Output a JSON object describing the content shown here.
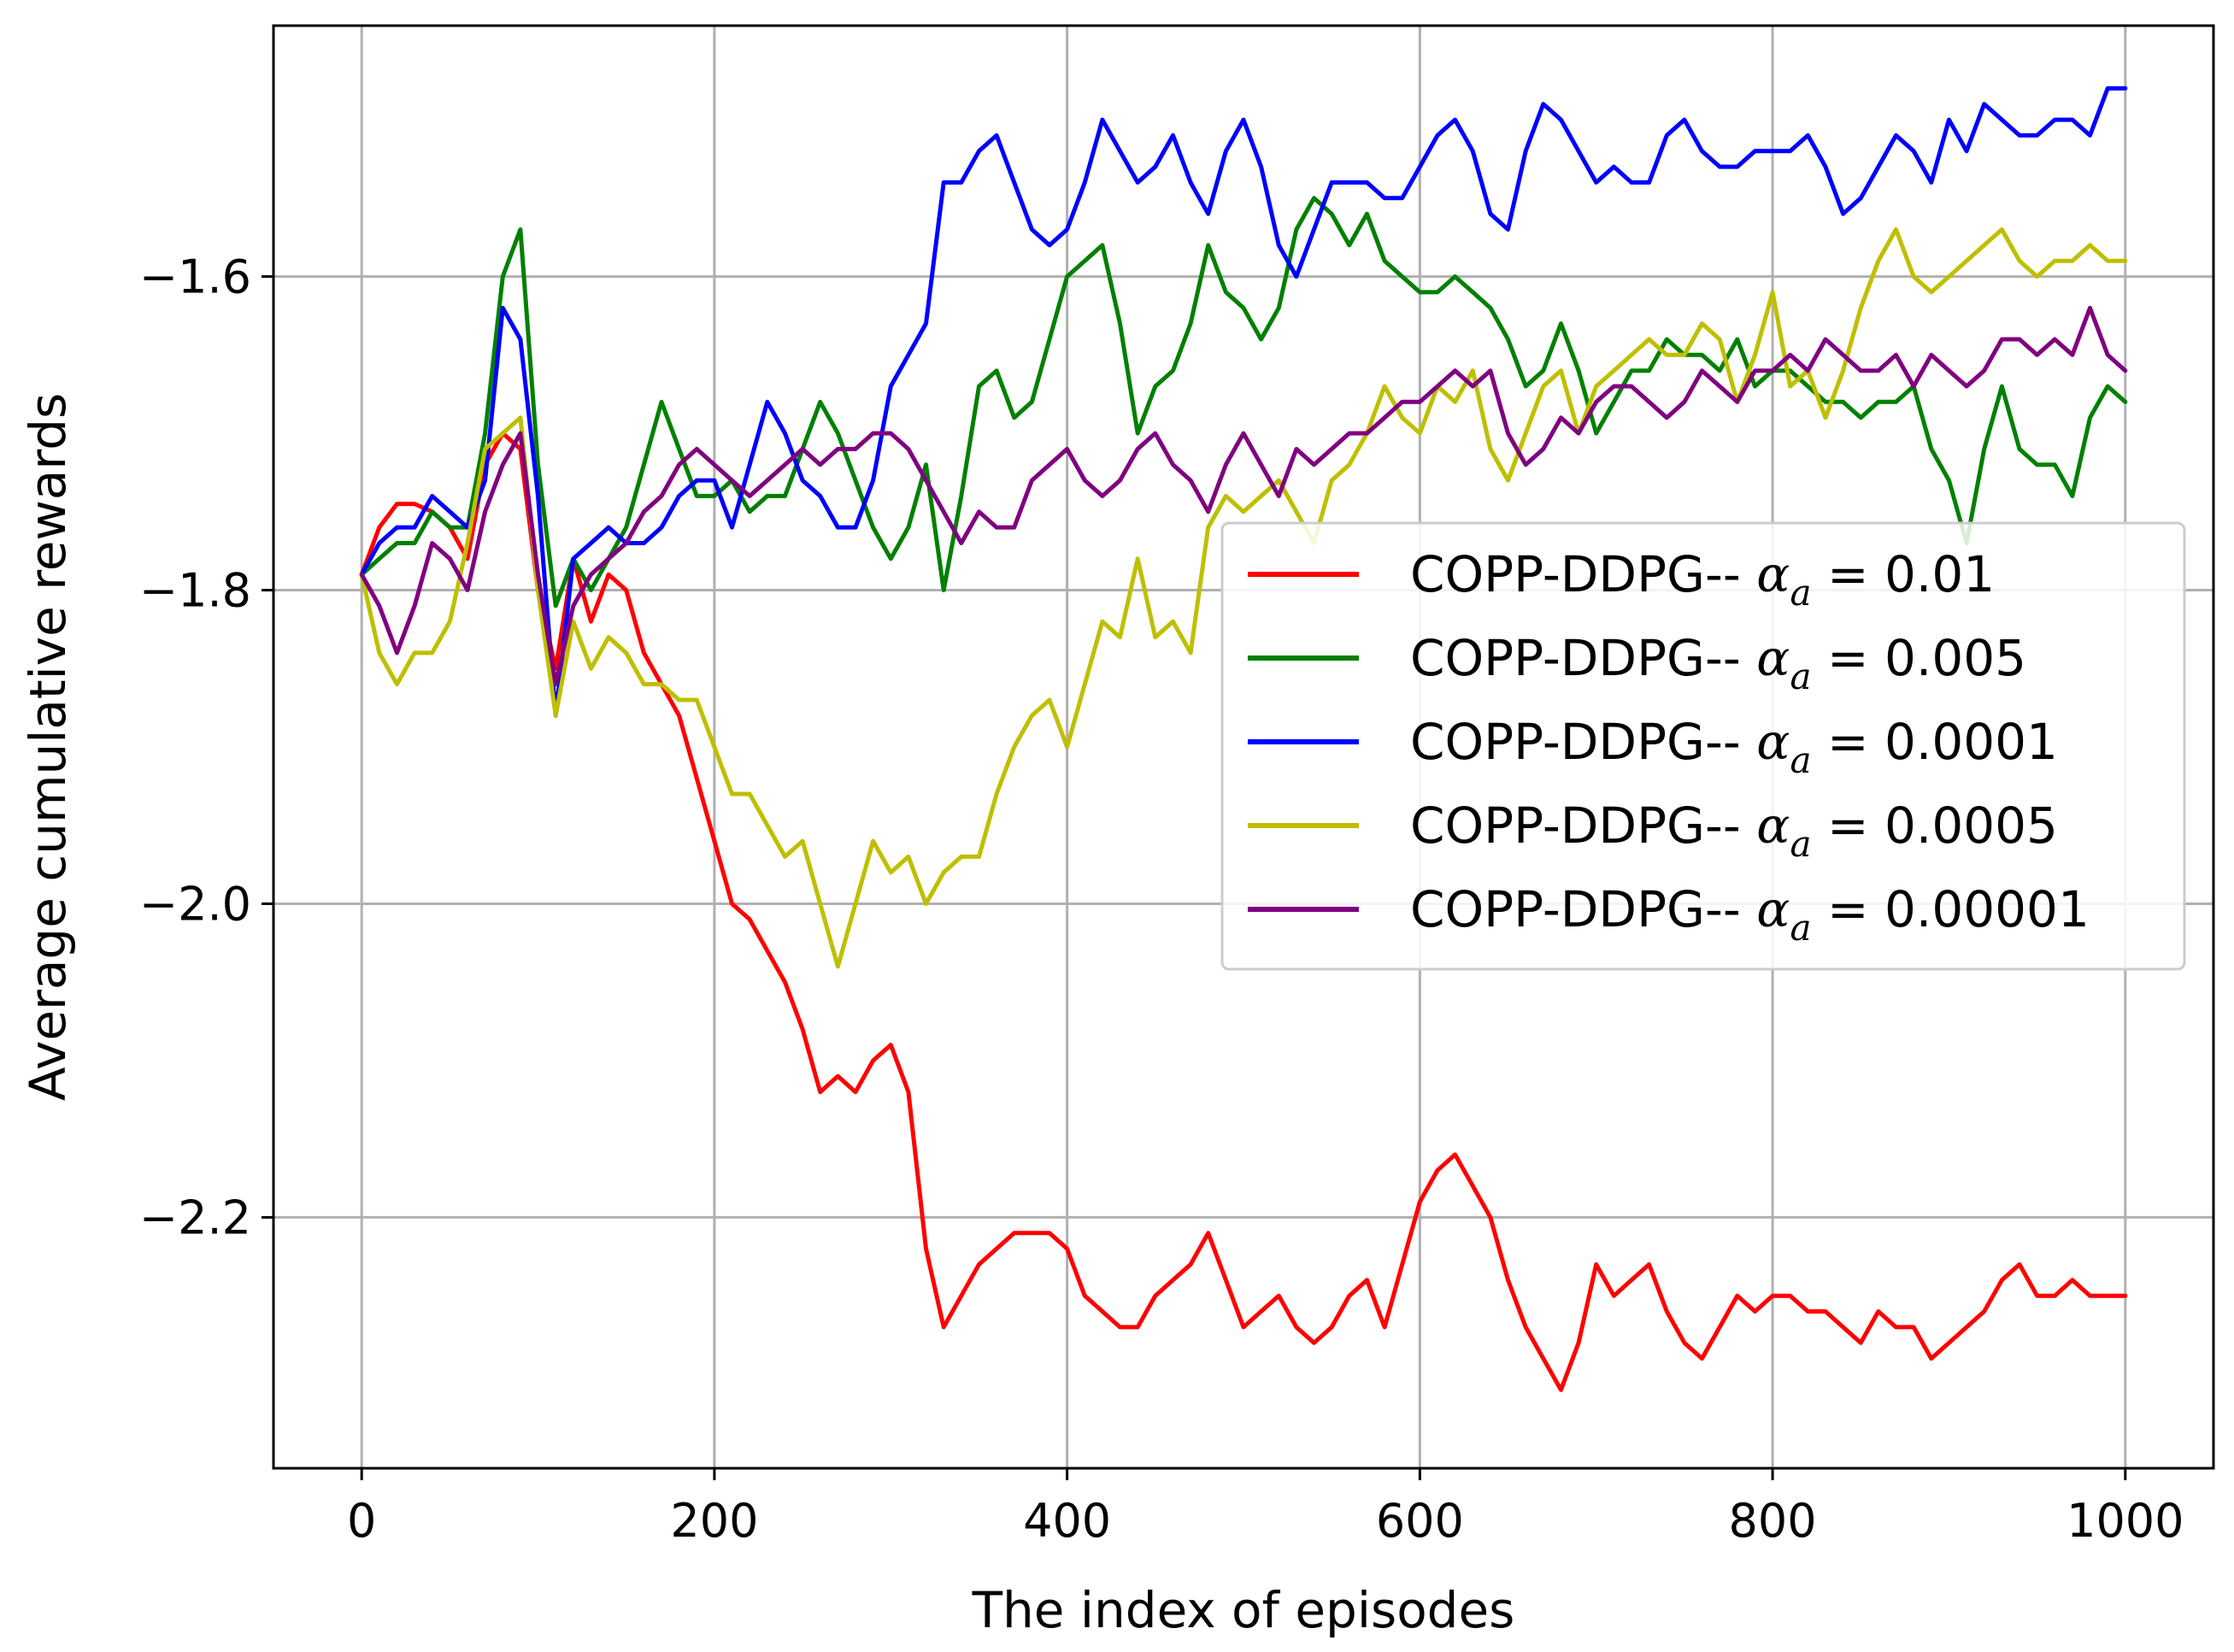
{
  "chart_data": {
    "type": "line",
    "title": "",
    "xlabel": "The index of episodes",
    "ylabel": "Average cumulative rewards",
    "xlim": [
      -50,
      1050
    ],
    "ylim": [
      -2.36,
      -1.44
    ],
    "xticks": [
      0,
      200,
      400,
      600,
      800,
      1000
    ],
    "xtick_labels": [
      "0",
      "200",
      "400",
      "600",
      "800",
      "1000"
    ],
    "yticks": [
      -2.2,
      -2.0,
      -1.8,
      -1.6
    ],
    "ytick_labels": [
      "−2.2",
      "−2.0",
      "−1.8",
      "−1.6"
    ],
    "grid": true,
    "legend_position": "center-right",
    "legend_prefix": "COPP-DDPG-- ",
    "legend_symbol": "α",
    "legend_subscript": "a",
    "legend_eq": " = ",
    "series": [
      {
        "name": "COPP-DDPG-- αa = 0.01",
        "alpha": "0.01",
        "color": "#ff0000",
        "x": [
          0,
          10,
          20,
          30,
          40,
          50,
          60,
          70,
          80,
          90,
          100,
          110,
          120,
          130,
          140,
          150,
          160,
          170,
          180,
          190,
          200,
          210,
          220,
          230,
          240,
          250,
          260,
          270,
          280,
          290,
          300,
          310,
          320,
          330,
          340,
          350,
          360,
          370,
          380,
          390,
          400,
          410,
          420,
          430,
          440,
          450,
          460,
          470,
          480,
          490,
          500,
          510,
          520,
          530,
          540,
          550,
          560,
          570,
          580,
          590,
          600,
          610,
          620,
          630,
          640,
          650,
          660,
          670,
          680,
          690,
          700,
          710,
          720,
          730,
          740,
          750,
          760,
          770,
          780,
          790,
          800,
          810,
          820,
          830,
          840,
          850,
          860,
          870,
          880,
          890,
          900,
          910,
          920,
          930,
          940,
          950,
          960,
          970,
          980,
          990,
          1000
        ],
        "values": [
          -1.79,
          -1.76,
          -1.745,
          -1.745,
          -1.75,
          -1.76,
          -1.78,
          -1.72,
          -1.7,
          -1.71,
          -1.8,
          -1.85,
          -1.78,
          -1.82,
          -1.79,
          -1.8,
          -1.84,
          -1.86,
          -1.88,
          -1.92,
          -1.96,
          -2.0,
          -2.01,
          -2.03,
          -2.05,
          -2.08,
          -2.12,
          -2.11,
          -2.12,
          -2.1,
          -2.09,
          -2.12,
          -2.22,
          -2.27,
          -2.25,
          -2.23,
          -2.22,
          -2.21,
          -2.21,
          -2.21,
          -2.22,
          -2.25,
          -2.26,
          -2.27,
          -2.27,
          -2.25,
          -2.24,
          -2.23,
          -2.21,
          -2.24,
          -2.27,
          -2.26,
          -2.25,
          -2.27,
          -2.28,
          -2.27,
          -2.25,
          -2.24,
          -2.27,
          -2.23,
          -2.19,
          -2.17,
          -2.16,
          -2.18,
          -2.2,
          -2.24,
          -2.27,
          -2.29,
          -2.31,
          -2.28,
          -2.23,
          -2.25,
          -2.24,
          -2.23,
          -2.26,
          -2.28,
          -2.29,
          -2.27,
          -2.25,
          -2.26,
          -2.25,
          -2.25,
          -2.26,
          -2.26,
          -2.27,
          -2.28,
          -2.26,
          -2.27,
          -2.27,
          -2.29,
          -2.28,
          -2.27,
          -2.26,
          -2.24,
          -2.23,
          -2.25,
          -2.25,
          -2.24,
          -2.25,
          -2.25,
          -2.25
        ]
      },
      {
        "name": "COPP-DDPG-- αa = 0.005",
        "alpha": "0.005",
        "color": "#008000",
        "x": [
          0,
          10,
          20,
          30,
          40,
          50,
          60,
          70,
          80,
          90,
          100,
          110,
          120,
          130,
          140,
          150,
          160,
          170,
          180,
          190,
          200,
          210,
          220,
          230,
          240,
          250,
          260,
          270,
          280,
          290,
          300,
          310,
          320,
          330,
          340,
          350,
          360,
          370,
          380,
          390,
          400,
          410,
          420,
          430,
          440,
          450,
          460,
          470,
          480,
          490,
          500,
          510,
          520,
          530,
          540,
          550,
          560,
          570,
          580,
          590,
          600,
          610,
          620,
          630,
          640,
          650,
          660,
          670,
          680,
          690,
          700,
          710,
          720,
          730,
          740,
          750,
          760,
          770,
          780,
          790,
          800,
          810,
          820,
          830,
          840,
          850,
          860,
          870,
          880,
          890,
          900,
          910,
          920,
          930,
          940,
          950,
          960,
          970,
          980,
          990,
          1000
        ],
        "values": [
          -1.79,
          -1.78,
          -1.77,
          -1.77,
          -1.75,
          -1.76,
          -1.76,
          -1.7,
          -1.6,
          -1.57,
          -1.72,
          -1.81,
          -1.78,
          -1.8,
          -1.78,
          -1.76,
          -1.72,
          -1.68,
          -1.71,
          -1.74,
          -1.74,
          -1.73,
          -1.75,
          -1.74,
          -1.74,
          -1.71,
          -1.68,
          -1.7,
          -1.73,
          -1.76,
          -1.78,
          -1.76,
          -1.72,
          -1.8,
          -1.74,
          -1.67,
          -1.66,
          -1.69,
          -1.68,
          -1.64,
          -1.6,
          -1.59,
          -1.58,
          -1.63,
          -1.7,
          -1.67,
          -1.66,
          -1.63,
          -1.58,
          -1.61,
          -1.62,
          -1.64,
          -1.62,
          -1.57,
          -1.55,
          -1.56,
          -1.58,
          -1.56,
          -1.59,
          -1.6,
          -1.61,
          -1.61,
          -1.6,
          -1.61,
          -1.62,
          -1.64,
          -1.67,
          -1.66,
          -1.63,
          -1.66,
          -1.7,
          -1.68,
          -1.66,
          -1.66,
          -1.64,
          -1.65,
          -1.65,
          -1.66,
          -1.64,
          -1.67,
          -1.66,
          -1.66,
          -1.67,
          -1.68,
          -1.68,
          -1.69,
          -1.68,
          -1.68,
          -1.67,
          -1.71,
          -1.73,
          -1.77,
          -1.71,
          -1.67,
          -1.71,
          -1.72,
          -1.72,
          -1.74,
          -1.69,
          -1.67,
          -1.68
        ]
      },
      {
        "name": "COPP-DDPG-- αa = 0.0001",
        "alpha": "0.0001",
        "color": "#0000ff",
        "x": [
          0,
          10,
          20,
          30,
          40,
          50,
          60,
          70,
          80,
          90,
          100,
          110,
          120,
          130,
          140,
          150,
          160,
          170,
          180,
          190,
          200,
          210,
          220,
          230,
          240,
          250,
          260,
          270,
          280,
          290,
          300,
          310,
          320,
          330,
          340,
          350,
          360,
          370,
          380,
          390,
          400,
          410,
          420,
          430,
          440,
          450,
          460,
          470,
          480,
          490,
          500,
          510,
          520,
          530,
          540,
          550,
          560,
          570,
          580,
          590,
          600,
          610,
          620,
          630,
          640,
          650,
          660,
          670,
          680,
          690,
          700,
          710,
          720,
          730,
          740,
          750,
          760,
          770,
          780,
          790,
          800,
          810,
          820,
          830,
          840,
          850,
          860,
          870,
          880,
          890,
          900,
          910,
          920,
          930,
          940,
          950,
          960,
          970,
          980,
          990,
          1000
        ],
        "values": [
          -1.79,
          -1.77,
          -1.76,
          -1.76,
          -1.74,
          -1.75,
          -1.76,
          -1.73,
          -1.62,
          -1.64,
          -1.74,
          -1.88,
          -1.78,
          -1.77,
          -1.76,
          -1.77,
          -1.77,
          -1.76,
          -1.74,
          -1.73,
          -1.73,
          -1.76,
          -1.72,
          -1.68,
          -1.7,
          -1.73,
          -1.74,
          -1.76,
          -1.76,
          -1.73,
          -1.67,
          -1.65,
          -1.63,
          -1.54,
          -1.54,
          -1.52,
          -1.51,
          -1.54,
          -1.57,
          -1.58,
          -1.57,
          -1.54,
          -1.5,
          -1.52,
          -1.54,
          -1.53,
          -1.51,
          -1.54,
          -1.56,
          -1.52,
          -1.5,
          -1.53,
          -1.58,
          -1.6,
          -1.57,
          -1.54,
          -1.54,
          -1.54,
          -1.55,
          -1.55,
          -1.53,
          -1.51,
          -1.5,
          -1.52,
          -1.56,
          -1.57,
          -1.52,
          -1.49,
          -1.5,
          -1.52,
          -1.54,
          -1.53,
          -1.54,
          -1.54,
          -1.51,
          -1.5,
          -1.52,
          -1.53,
          -1.53,
          -1.52,
          -1.52,
          -1.52,
          -1.51,
          -1.53,
          -1.56,
          -1.55,
          -1.53,
          -1.51,
          -1.52,
          -1.54,
          -1.5,
          -1.52,
          -1.49,
          -1.5,
          -1.51,
          -1.51,
          -1.5,
          -1.5,
          -1.51,
          -1.48,
          -1.48
        ]
      },
      {
        "name": "COPP-DDPG-- αa = 0.0005",
        "alpha": "0.0005",
        "color": "#bfbf00",
        "x": [
          0,
          10,
          20,
          30,
          40,
          50,
          60,
          70,
          80,
          90,
          100,
          110,
          120,
          130,
          140,
          150,
          160,
          170,
          180,
          190,
          200,
          210,
          220,
          230,
          240,
          250,
          260,
          270,
          280,
          290,
          300,
          310,
          320,
          330,
          340,
          350,
          360,
          370,
          380,
          390,
          400,
          410,
          420,
          430,
          440,
          450,
          460,
          470,
          480,
          490,
          500,
          510,
          520,
          530,
          540,
          550,
          560,
          570,
          580,
          590,
          600,
          610,
          620,
          630,
          640,
          650,
          660,
          670,
          680,
          690,
          700,
          710,
          720,
          730,
          740,
          750,
          760,
          770,
          780,
          790,
          800,
          810,
          820,
          830,
          840,
          850,
          860,
          870,
          880,
          890,
          900,
          910,
          920,
          930,
          940,
          950,
          960,
          970,
          980,
          990,
          1000
        ],
        "values": [
          -1.79,
          -1.84,
          -1.86,
          -1.84,
          -1.84,
          -1.82,
          -1.77,
          -1.71,
          -1.7,
          -1.69,
          -1.8,
          -1.88,
          -1.82,
          -1.85,
          -1.83,
          -1.84,
          -1.86,
          -1.86,
          -1.87,
          -1.87,
          -1.9,
          -1.93,
          -1.93,
          -1.95,
          -1.97,
          -1.96,
          -2.0,
          -2.04,
          -2.0,
          -1.96,
          -1.98,
          -1.97,
          -2.0,
          -1.98,
          -1.97,
          -1.97,
          -1.93,
          -1.9,
          -1.88,
          -1.87,
          -1.9,
          -1.86,
          -1.82,
          -1.83,
          -1.78,
          -1.83,
          -1.82,
          -1.84,
          -1.76,
          -1.74,
          -1.75,
          -1.74,
          -1.73,
          -1.75,
          -1.77,
          -1.73,
          -1.72,
          -1.7,
          -1.67,
          -1.69,
          -1.7,
          -1.67,
          -1.68,
          -1.66,
          -1.71,
          -1.73,
          -1.7,
          -1.67,
          -1.66,
          -1.7,
          -1.67,
          -1.66,
          -1.65,
          -1.64,
          -1.65,
          -1.65,
          -1.63,
          -1.64,
          -1.68,
          -1.65,
          -1.61,
          -1.67,
          -1.66,
          -1.69,
          -1.66,
          -1.62,
          -1.59,
          -1.57,
          -1.6,
          -1.61,
          -1.6,
          -1.59,
          -1.58,
          -1.57,
          -1.59,
          -1.6,
          -1.59,
          -1.59,
          -1.58,
          -1.59,
          -1.59
        ]
      },
      {
        "name": "COPP-DDPG-- αa = 0.00001",
        "alpha": "0.00001",
        "color": "#800080",
        "x": [
          0,
          10,
          20,
          30,
          40,
          50,
          60,
          70,
          80,
          90,
          100,
          110,
          120,
          130,
          140,
          150,
          160,
          170,
          180,
          190,
          200,
          210,
          220,
          230,
          240,
          250,
          260,
          270,
          280,
          290,
          300,
          310,
          320,
          330,
          340,
          350,
          360,
          370,
          380,
          390,
          400,
          410,
          420,
          430,
          440,
          450,
          460,
          470,
          480,
          490,
          500,
          510,
          520,
          530,
          540,
          550,
          560,
          570,
          580,
          590,
          600,
          610,
          620,
          630,
          640,
          650,
          660,
          670,
          680,
          690,
          700,
          710,
          720,
          730,
          740,
          750,
          760,
          770,
          780,
          790,
          800,
          810,
          820,
          830,
          840,
          850,
          860,
          870,
          880,
          890,
          900,
          910,
          920,
          930,
          940,
          950,
          960,
          970,
          980,
          990,
          1000
        ],
        "values": [
          -1.79,
          -1.81,
          -1.84,
          -1.81,
          -1.77,
          -1.78,
          -1.8,
          -1.75,
          -1.72,
          -1.7,
          -1.79,
          -1.86,
          -1.81,
          -1.79,
          -1.78,
          -1.77,
          -1.75,
          -1.74,
          -1.72,
          -1.71,
          -1.72,
          -1.73,
          -1.74,
          -1.73,
          -1.72,
          -1.71,
          -1.72,
          -1.71,
          -1.71,
          -1.7,
          -1.7,
          -1.71,
          -1.73,
          -1.75,
          -1.77,
          -1.75,
          -1.76,
          -1.76,
          -1.73,
          -1.72,
          -1.71,
          -1.73,
          -1.74,
          -1.73,
          -1.71,
          -1.7,
          -1.72,
          -1.73,
          -1.75,
          -1.72,
          -1.7,
          -1.72,
          -1.74,
          -1.71,
          -1.72,
          -1.71,
          -1.7,
          -1.7,
          -1.69,
          -1.68,
          -1.68,
          -1.67,
          -1.66,
          -1.67,
          -1.66,
          -1.7,
          -1.72,
          -1.71,
          -1.69,
          -1.7,
          -1.68,
          -1.67,
          -1.67,
          -1.68,
          -1.69,
          -1.68,
          -1.66,
          -1.67,
          -1.68,
          -1.66,
          -1.66,
          -1.65,
          -1.66,
          -1.64,
          -1.65,
          -1.66,
          -1.66,
          -1.65,
          -1.67,
          -1.65,
          -1.66,
          -1.67,
          -1.66,
          -1.64,
          -1.64,
          -1.65,
          -1.64,
          -1.65,
          -1.62,
          -1.65,
          -1.66
        ]
      }
    ]
  }
}
